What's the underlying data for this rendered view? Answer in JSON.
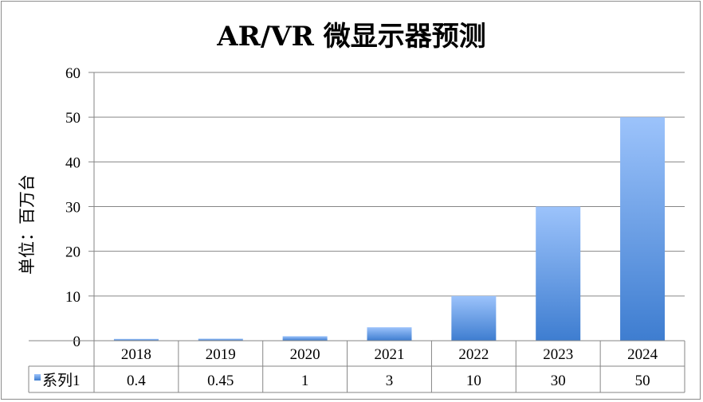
{
  "chart_data": {
    "type": "bar",
    "title": "AR/VR 微显示器预测",
    "ylabel": "单位：百万台",
    "xlabel": "",
    "categories": [
      "2018",
      "2019",
      "2020",
      "2021",
      "2022",
      "2023",
      "2024"
    ],
    "series": [
      {
        "name": "系列1",
        "values": [
          0.4,
          0.45,
          1,
          3,
          10,
          30,
          50
        ]
      }
    ],
    "table_values": [
      "0.4",
      "0.45",
      "1",
      "3",
      "10",
      "30",
      "50"
    ],
    "ylim": [
      0,
      60
    ],
    "yticks": [
      0,
      10,
      20,
      30,
      40,
      50,
      60
    ],
    "grid": true,
    "legend": "data-table",
    "colors": {
      "bar_top": "#9cc3fb",
      "bar_bottom": "#3e7dd0",
      "grid": "#868686"
    }
  }
}
